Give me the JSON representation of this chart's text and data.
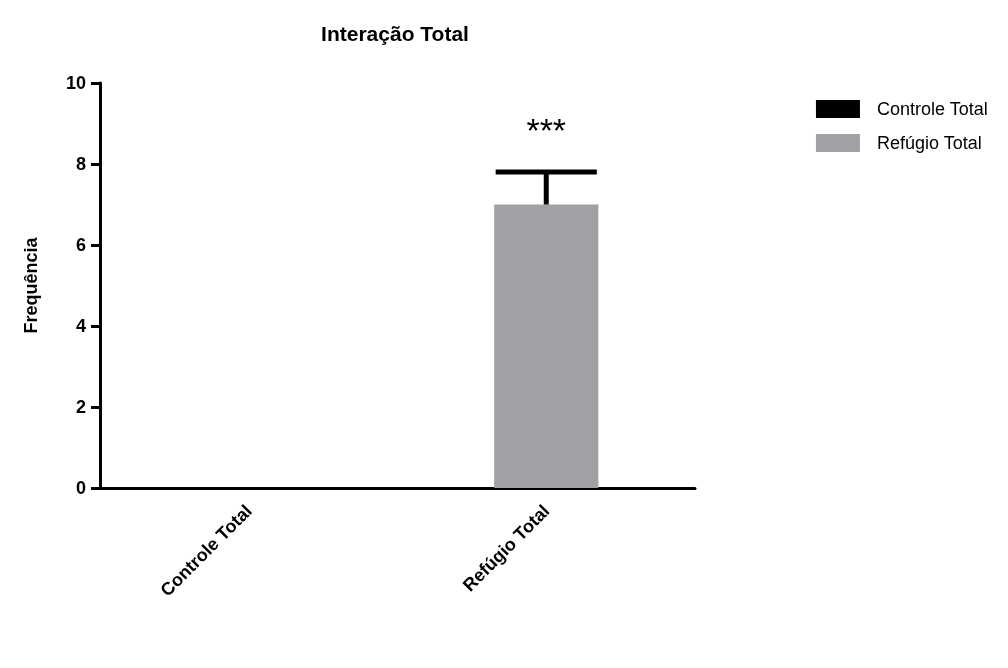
{
  "chart_data": {
    "type": "bar",
    "title": "Interação Total",
    "ylabel": "Frequência",
    "categories": [
      "Controle Total",
      "Refúgio Total"
    ],
    "series": [
      {
        "name": "Controle Total",
        "color": "#000000",
        "values": [
          0,
          null
        ],
        "errors": [
          null,
          null
        ]
      },
      {
        "name": "Refúgio Total",
        "color": "#a1a0a5",
        "values": [
          null,
          7.0
        ],
        "errors": [
          null,
          [
            7.0,
            7.8
          ]
        ]
      }
    ],
    "ylim": [
      0,
      10
    ],
    "yticks": [
      0,
      2,
      4,
      6,
      8,
      10
    ],
    "grid": false,
    "legend": "top right",
    "annotations": [
      "***"
    ]
  }
}
